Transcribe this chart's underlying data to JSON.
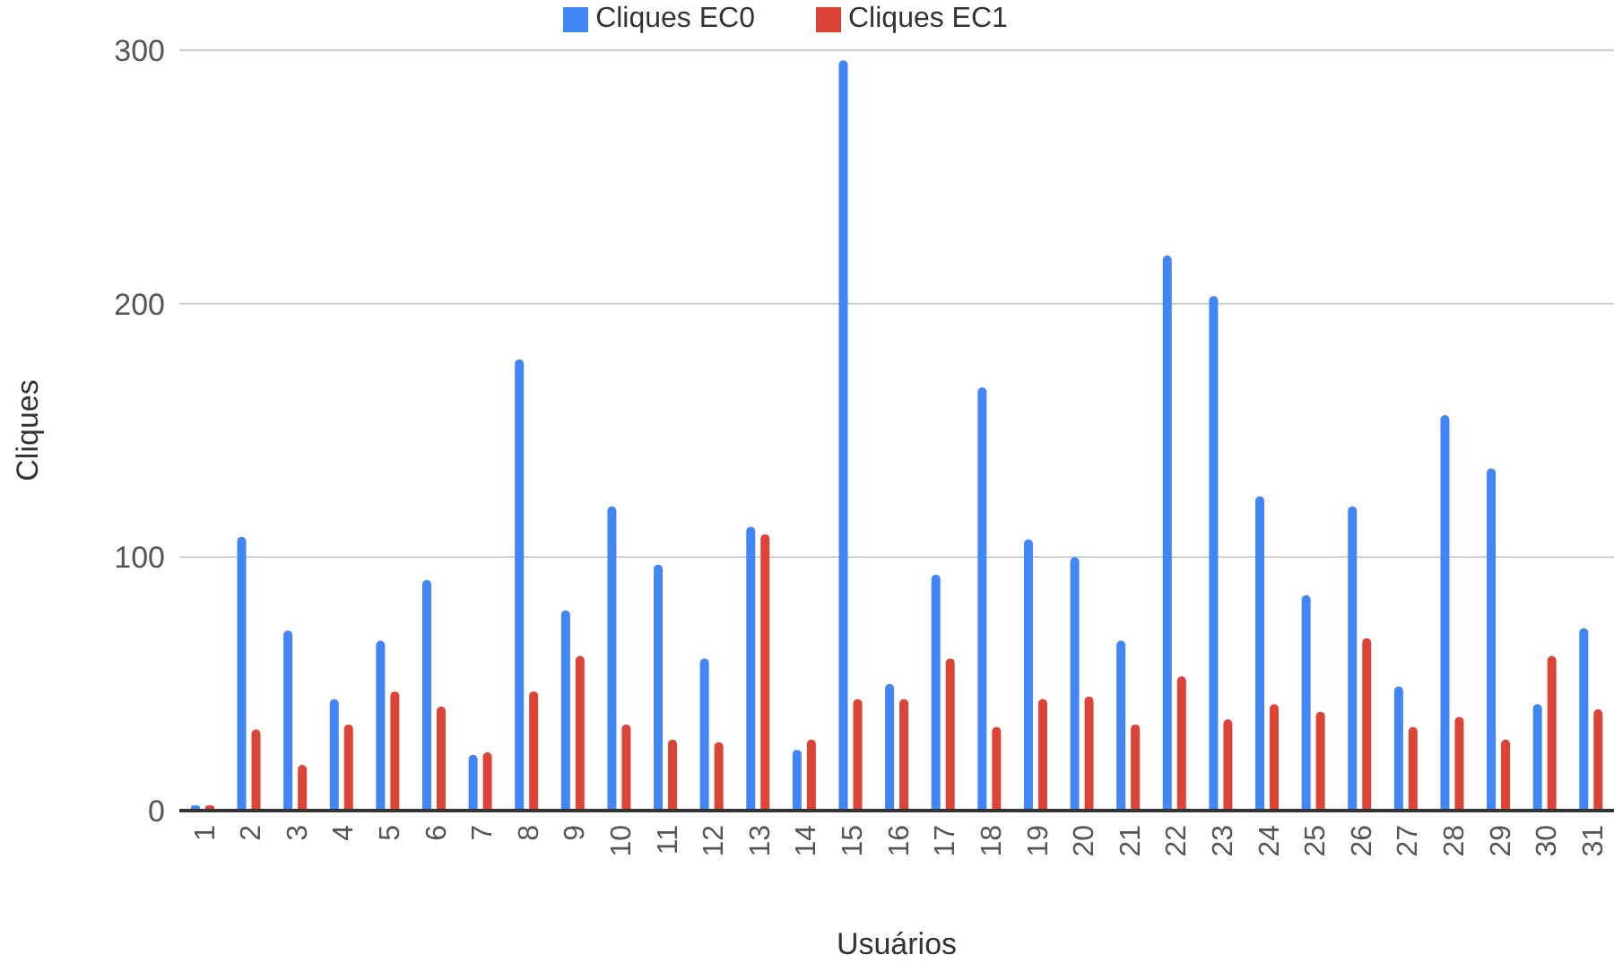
{
  "chart_data": {
    "type": "bar",
    "xlabel": "Usuários",
    "ylabel": "Cliques",
    "categories": [
      "1",
      "2",
      "3",
      "4",
      "5",
      "6",
      "7",
      "8",
      "9",
      "10",
      "11",
      "12",
      "13",
      "14",
      "15",
      "16",
      "17",
      "18",
      "19",
      "20",
      "21",
      "22",
      "23",
      "24",
      "25",
      "26",
      "27",
      "28",
      "29",
      "30",
      "31"
    ],
    "series": [
      {
        "name": "Cliques EC0",
        "color": "#4285f4",
        "values": [
          2,
          108,
          71,
          44,
          67,
          91,
          22,
          178,
          79,
          120,
          97,
          60,
          112,
          24,
          296,
          50,
          93,
          167,
          107,
          100,
          67,
          219,
          203,
          124,
          85,
          120,
          49,
          156,
          135,
          42,
          72
        ]
      },
      {
        "name": "Cliques EC1",
        "color": "#db4437",
        "values": [
          2,
          32,
          18,
          34,
          47,
          41,
          23,
          47,
          61,
          34,
          28,
          27,
          109,
          28,
          44,
          44,
          60,
          33,
          44,
          45,
          34,
          53,
          36,
          42,
          39,
          68,
          33,
          37,
          28,
          61,
          40
        ]
      }
    ],
    "ylim": [
      0,
      300
    ],
    "yticks": [
      0,
      100,
      200,
      300
    ],
    "grid": "y",
    "legend": "top"
  }
}
